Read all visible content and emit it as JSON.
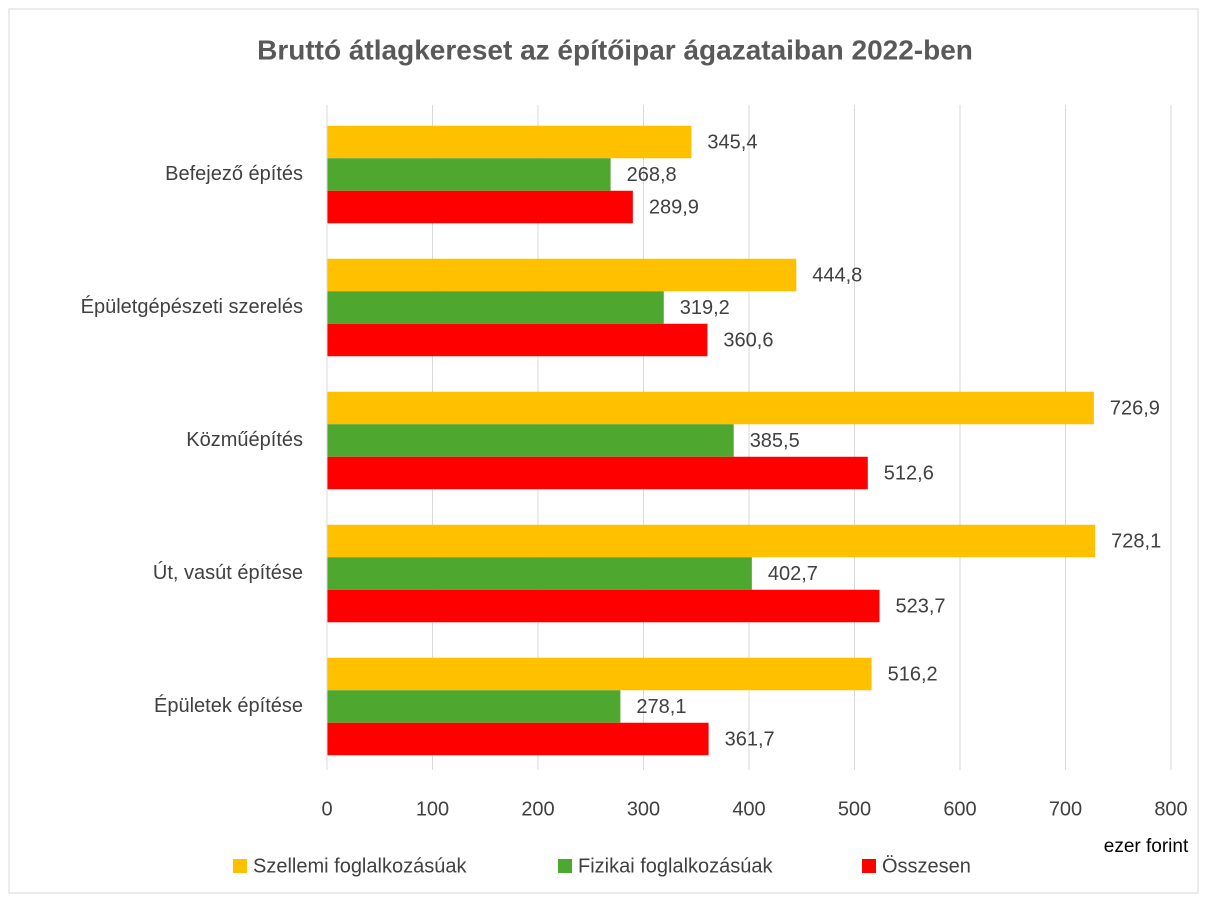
{
  "chart_data": {
    "type": "bar",
    "orientation": "horizontal",
    "title": "Bruttó átlagkereset az építőipar ágazataiban 2022-ben",
    "x_axis_label": "ezer forint",
    "categories": [
      "Befejező építés",
      "Épületgépészeti szerelés",
      "Közműépítés",
      "Út, vasút építése",
      "Épületek építése"
    ],
    "series": [
      {
        "name": "Szellemi foglalkozásúak",
        "color": "#FFC000",
        "values": [
          345.4,
          444.8,
          726.9,
          728.1,
          516.2
        ],
        "value_labels": [
          "345,4",
          "444,8",
          "726,9",
          "728,1",
          "516,2"
        ]
      },
      {
        "name": "Fizikai foglalkozásúak",
        "color": "#4EA72E",
        "values": [
          268.8,
          319.2,
          385.5,
          402.7,
          278.1
        ],
        "value_labels": [
          "268,8",
          "319,2",
          "385,5",
          "402,7",
          "278,1"
        ]
      },
      {
        "name": "Összesen",
        "color": "#FF0000",
        "values": [
          289.9,
          360.6,
          512.6,
          523.7,
          361.7
        ],
        "value_labels": [
          "289,9",
          "360,6",
          "512,6",
          "523,7",
          "361,7"
        ]
      }
    ],
    "xlim": [
      0,
      800
    ],
    "xticks": [
      0,
      100,
      200,
      300,
      400,
      500,
      600,
      700,
      800
    ],
    "grid": true,
    "legend": "bottom"
  }
}
